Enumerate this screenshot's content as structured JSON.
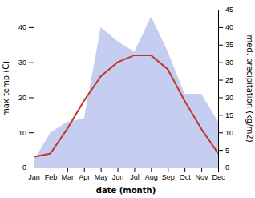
{
  "chart_data": {
    "type": "line",
    "categories": [
      "Jan",
      "Feb",
      "Mar",
      "Apr",
      "May",
      "Jun",
      "Jul",
      "Aug",
      "Sep",
      "Oct",
      "Nov",
      "Dec"
    ],
    "xlabel": "date (month)",
    "ylabel": "max temp (C)",
    "y2label": "med. precipitation (kg/m2)",
    "ylim": [
      0,
      45
    ],
    "yticks": [
      0,
      10,
      20,
      30,
      40
    ],
    "y2lim": [
      0,
      45
    ],
    "y2ticks": [
      0,
      5,
      10,
      15,
      20,
      25,
      30,
      35,
      40,
      45
    ],
    "series": [
      {
        "type": "area",
        "axis": "y2",
        "color": "#c5cdf0",
        "values": [
          2,
          10,
          13,
          14,
          40,
          36,
          33,
          43,
          33,
          21,
          21,
          13
        ]
      },
      {
        "type": "line",
        "color": "#c0392b",
        "values": [
          3,
          4,
          11,
          19,
          26,
          30,
          32,
          32,
          28,
          19,
          11,
          4
        ]
      }
    ]
  }
}
